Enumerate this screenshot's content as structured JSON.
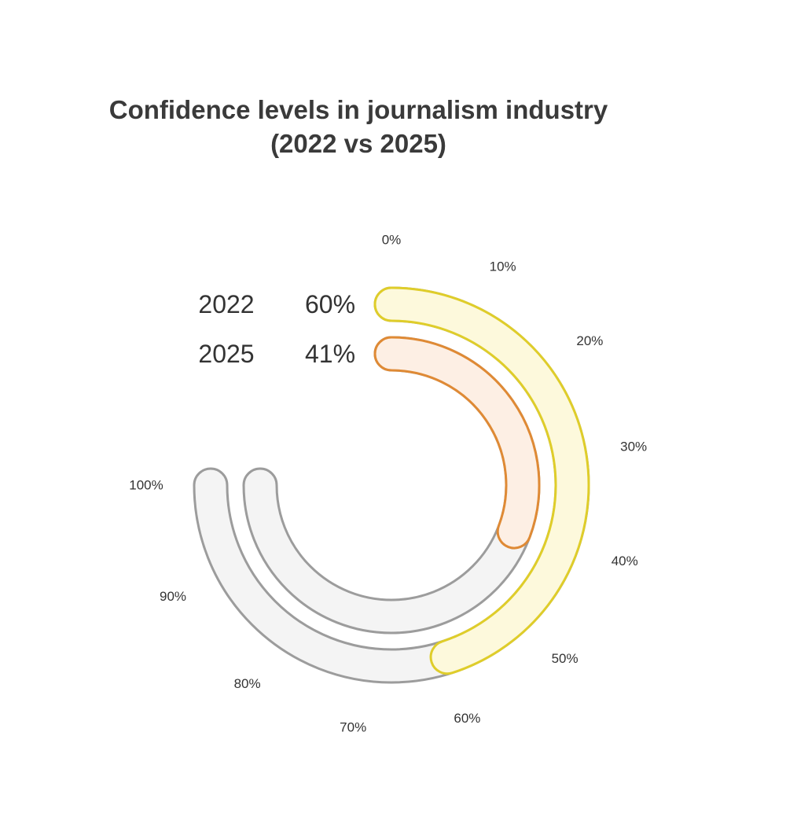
{
  "chart_data": {
    "type": "radial-bar",
    "title": "Confidence levels in journalism industry",
    "subtitle": "(2022 vs 2025)",
    "axis": {
      "min": 0,
      "max": 100,
      "ticks": [
        "0%",
        "10%",
        "20%",
        "30%",
        "40%",
        "50%",
        "60%",
        "70%",
        "80%",
        "90%",
        "100%"
      ],
      "sweep_degrees": 270,
      "direction": "clockwise from top"
    },
    "series": [
      {
        "name": "2022",
        "value": 60,
        "label": "60%",
        "fill": "#fdf9dc",
        "stroke": "#dfcd2a"
      },
      {
        "name": "2025",
        "value": 41,
        "label": "41%",
        "fill": "#fdefe4",
        "stroke": "#df8a35"
      }
    ],
    "track_colors": {
      "fill": "#f4f4f4",
      "stroke": "#9c9c9c"
    }
  }
}
